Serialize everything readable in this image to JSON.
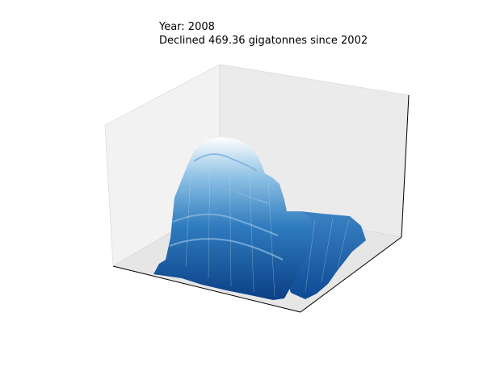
{
  "chart_data": {
    "type": "surface3d",
    "title_lines": [
      "Year: 2008",
      "Declined 469.36 gigatonnes since 2002"
    ],
    "colormap": "Blues",
    "colors": {
      "low": "#0b3f85",
      "mid": "#4f95cd",
      "high": "#ffffff",
      "pane_light": "#f2f2f2",
      "pane_mid": "#ebebeb",
      "pane_floor": "#e6e6e6",
      "axis_line": "#000000"
    },
    "xlabel": "",
    "ylabel": "",
    "zlabel": "",
    "grid": false,
    "ticks": false
  }
}
